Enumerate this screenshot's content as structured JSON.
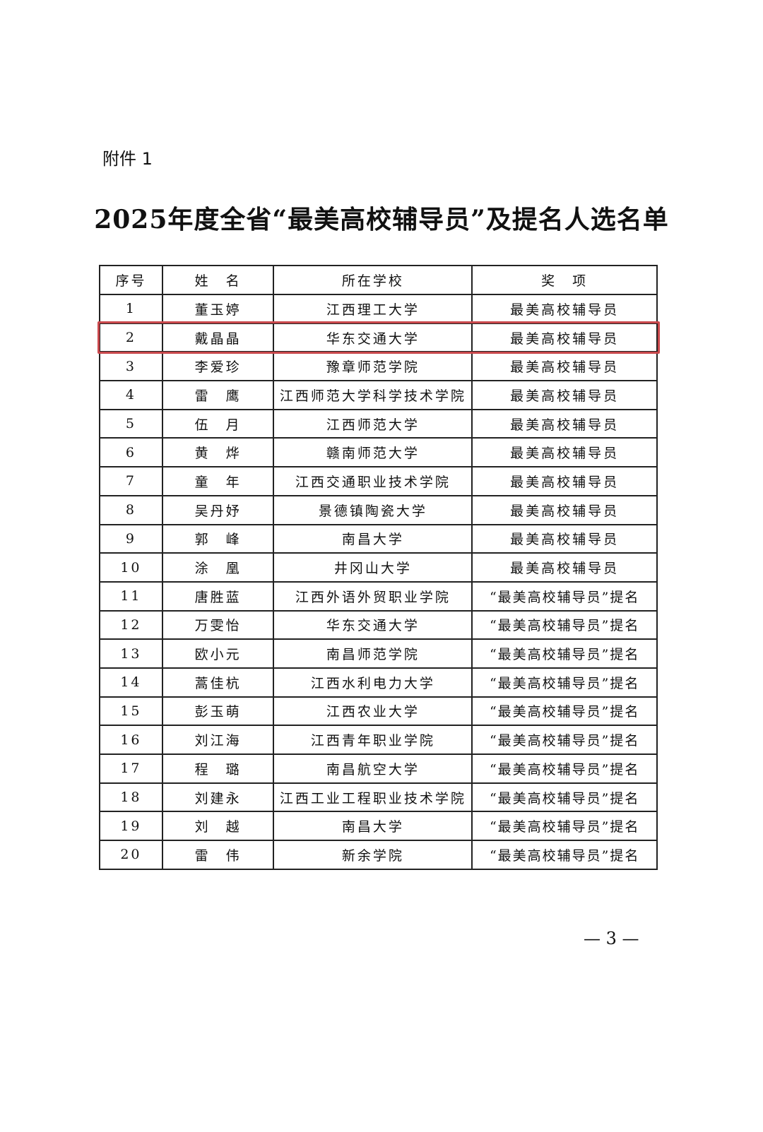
{
  "attachment_label": "附件 1",
  "title": "2025年度全省“最美高校辅导员”及提名人选名单",
  "table": {
    "headers": [
      "序号",
      "姓　名",
      "所在学校",
      "奖　项"
    ],
    "rows": [
      [
        "1",
        "董玉婷",
        "江西理工大学",
        "最美高校辅导员"
      ],
      [
        "2",
        "戴晶晶",
        "华东交通大学",
        "最美高校辅导员"
      ],
      [
        "3",
        "李爱珍",
        "豫章师范学院",
        "最美高校辅导员"
      ],
      [
        "4",
        "雷　鹰",
        "江西师范大学科学技术学院",
        "最美高校辅导员"
      ],
      [
        "5",
        "伍　月",
        "江西师范大学",
        "最美高校辅导员"
      ],
      [
        "6",
        "黄　烨",
        "赣南师范大学",
        "最美高校辅导员"
      ],
      [
        "7",
        "童　年",
        "江西交通职业技术学院",
        "最美高校辅导员"
      ],
      [
        "8",
        "吴丹妤",
        "景德镇陶瓷大学",
        "最美高校辅导员"
      ],
      [
        "9",
        "郭　峰",
        "南昌大学",
        "最美高校辅导员"
      ],
      [
        "10",
        "涂　凰",
        "井冈山大学",
        "最美高校辅导员"
      ],
      [
        "11",
        "唐胜蓝",
        "江西外语外贸职业学院",
        "“最美高校辅导员”提名"
      ],
      [
        "12",
        "万雯怡",
        "华东交通大学",
        "“最美高校辅导员”提名"
      ],
      [
        "13",
        "欧小元",
        "南昌师范学院",
        "“最美高校辅导员”提名"
      ],
      [
        "14",
        "蒿佳杭",
        "江西水利电力大学",
        "“最美高校辅导员”提名"
      ],
      [
        "15",
        "彭玉萌",
        "江西农业大学",
        "“最美高校辅导员”提名"
      ],
      [
        "16",
        "刘江海",
        "江西青年职业学院",
        "“最美高校辅导员”提名"
      ],
      [
        "17",
        "程　璐",
        "南昌航空大学",
        "“最美高校辅导员”提名"
      ],
      [
        "18",
        "刘建永",
        "江西工业工程职业技术学院",
        "“最美高校辅导员”提名"
      ],
      [
        "19",
        "刘　越",
        "南昌大学",
        "“最美高校辅导员”提名"
      ],
      [
        "20",
        "雷　伟",
        "新余学院",
        "“最美高校辅导员”提名"
      ]
    ],
    "highlighted_row": 2,
    "highlight_color": "#c9484c"
  },
  "page_number": "— 3 —"
}
